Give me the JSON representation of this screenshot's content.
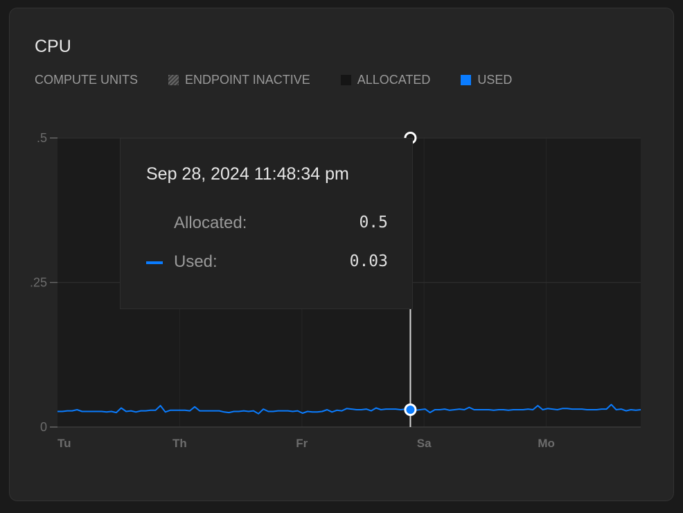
{
  "title": "CPU",
  "legend": {
    "unit_label": "COMPUTE UNITS",
    "items": [
      {
        "label": "ENDPOINT INACTIVE",
        "swatch": "hatched"
      },
      {
        "label": "ALLOCATED",
        "color": "#151515"
      },
      {
        "label": "USED",
        "color": "#0a7cff"
      }
    ]
  },
  "tooltip": {
    "timestamp": "Sep 28, 2024 11:48:34 pm",
    "allocated_label": "Allocated:",
    "allocated_value": "0.5",
    "used_label": "Used:",
    "used_value": "0.03"
  },
  "chart_data": {
    "type": "line",
    "ylim": [
      0,
      0.5
    ],
    "y_ticks": [
      {
        "value": 0,
        "label": "0"
      },
      {
        "value": 0.25,
        "label": ".25"
      },
      {
        "value": 0.5,
        "label": ".5"
      }
    ],
    "x_tick_labels": [
      "Tu",
      "Th",
      "Fr",
      "Sa",
      "Mo"
    ],
    "grid": true,
    "allocated": 0.5,
    "hover_index": 72,
    "series": [
      {
        "name": "Used",
        "color": "#0a7cff",
        "values": [
          0.027,
          0.027,
          0.028,
          0.028,
          0.03,
          0.027,
          0.027,
          0.027,
          0.027,
          0.027,
          0.026,
          0.027,
          0.025,
          0.033,
          0.027,
          0.028,
          0.026,
          0.028,
          0.028,
          0.029,
          0.029,
          0.037,
          0.026,
          0.029,
          0.029,
          0.029,
          0.029,
          0.028,
          0.035,
          0.028,
          0.028,
          0.028,
          0.028,
          0.028,
          0.026,
          0.025,
          0.027,
          0.027,
          0.028,
          0.027,
          0.028,
          0.023,
          0.031,
          0.027,
          0.027,
          0.028,
          0.028,
          0.028,
          0.027,
          0.028,
          0.024,
          0.027,
          0.026,
          0.026,
          0.027,
          0.03,
          0.026,
          0.029,
          0.028,
          0.032,
          0.031,
          0.03,
          0.03,
          0.031,
          0.028,
          0.033,
          0.03,
          0.031,
          0.031,
          0.031,
          0.03,
          0.031,
          0.03,
          0.029,
          0.03,
          0.031,
          0.025,
          0.03,
          0.03,
          0.031,
          0.029,
          0.03,
          0.031,
          0.03,
          0.034,
          0.03,
          0.03,
          0.03,
          0.03,
          0.029,
          0.03,
          0.03,
          0.029,
          0.03,
          0.03,
          0.03,
          0.031,
          0.03,
          0.037,
          0.03,
          0.032,
          0.031,
          0.03,
          0.032,
          0.032,
          0.031,
          0.031,
          0.031,
          0.03,
          0.03,
          0.03,
          0.031,
          0.031,
          0.039,
          0.03,
          0.031,
          0.028,
          0.03,
          0.029,
          0.03
        ]
      }
    ]
  }
}
